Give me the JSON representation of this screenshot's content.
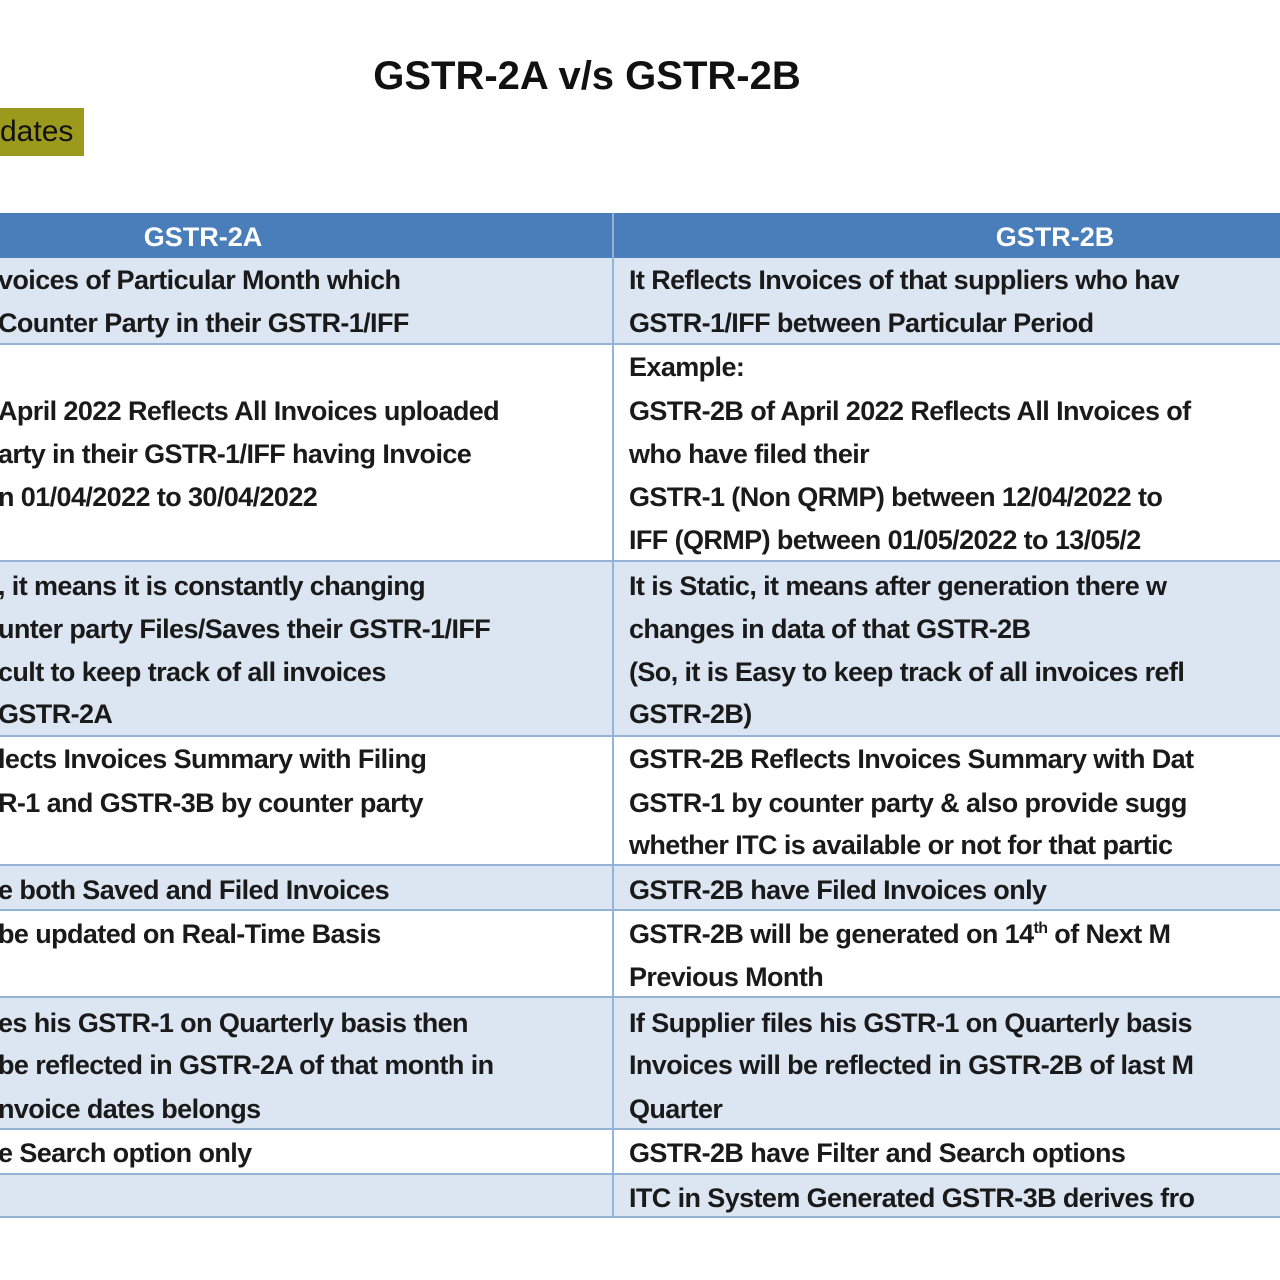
{
  "header": {
    "title": "GSTR-2A v/s GSTR-2B",
    "tag": "dates"
  },
  "table": {
    "columns": [
      "GSTR-2A",
      "GSTR-2B"
    ],
    "rows": [
      {
        "left": [
          "voices of Particular Month which",
          "Counter Party in their GSTR-1/IFF"
        ],
        "right": [
          "It Reflects Invoices of that suppliers who hav",
          "GSTR-1/IFF between Particular Period"
        ]
      },
      {
        "left": [
          "April 2022 Reflects All Invoices uploaded",
          "arty in their GSTR-1/IFF having Invoice",
          "n 01/04/2022 to 30/04/2022"
        ],
        "right": [
          "Example:",
          "GSTR-2B of April 2022 Reflects All Invoices of",
          "who have filed their",
          "GSTR-1 (Non QRMP) between 12/04/2022 to",
          "IFF (QRMP) between 01/05/2022 to 13/05/2"
        ]
      },
      {
        "left": [
          ", it means it is constantly changing",
          "unter party Files/Saves their GSTR-1/IFF",
          "cult to keep track of all invoices",
          "GSTR-2A"
        ],
        "right": [
          "It is Static, it means after generation there w",
          "changes in data of that GSTR-2B",
          "(So, it is Easy to keep track of all invoices refl",
          "GSTR-2B)"
        ]
      },
      {
        "left": [
          "lects Invoices Summary with Filing",
          "R-1 and GSTR-3B by counter party"
        ],
        "right": [
          "GSTR-2B Reflects Invoices Summary with Dat",
          "GSTR-1 by counter party & also provide sugg",
          "whether ITC is available or not for that partic"
        ]
      },
      {
        "left": [
          "e both Saved and Filed Invoices"
        ],
        "right": [
          "GSTR-2B have Filed Invoices only"
        ]
      },
      {
        "left": [
          " be updated on Real-Time Basis"
        ],
        "right": [
          {
            "text": "GSTR-2B will be generated on 14",
            "sup": "th",
            "after": " of Next M"
          },
          "Previous Month"
        ]
      },
      {
        "left": [
          "es his GSTR-1 on Quarterly basis then",
          "be reflected in GSTR-2A of that month in",
          "nvoice dates belongs"
        ],
        "right": [
          "If Supplier files his GSTR-1 on Quarterly basis",
          "Invoices will be reflected in GSTR-2B of last M",
          "Quarter"
        ]
      },
      {
        "left": [
          "e Search option only"
        ],
        "right": [
          "GSTR-2B have Filter and Search options"
        ]
      },
      {
        "left": [],
        "right": [
          "ITC in System Generated GSTR-3B derives fro"
        ]
      }
    ]
  }
}
